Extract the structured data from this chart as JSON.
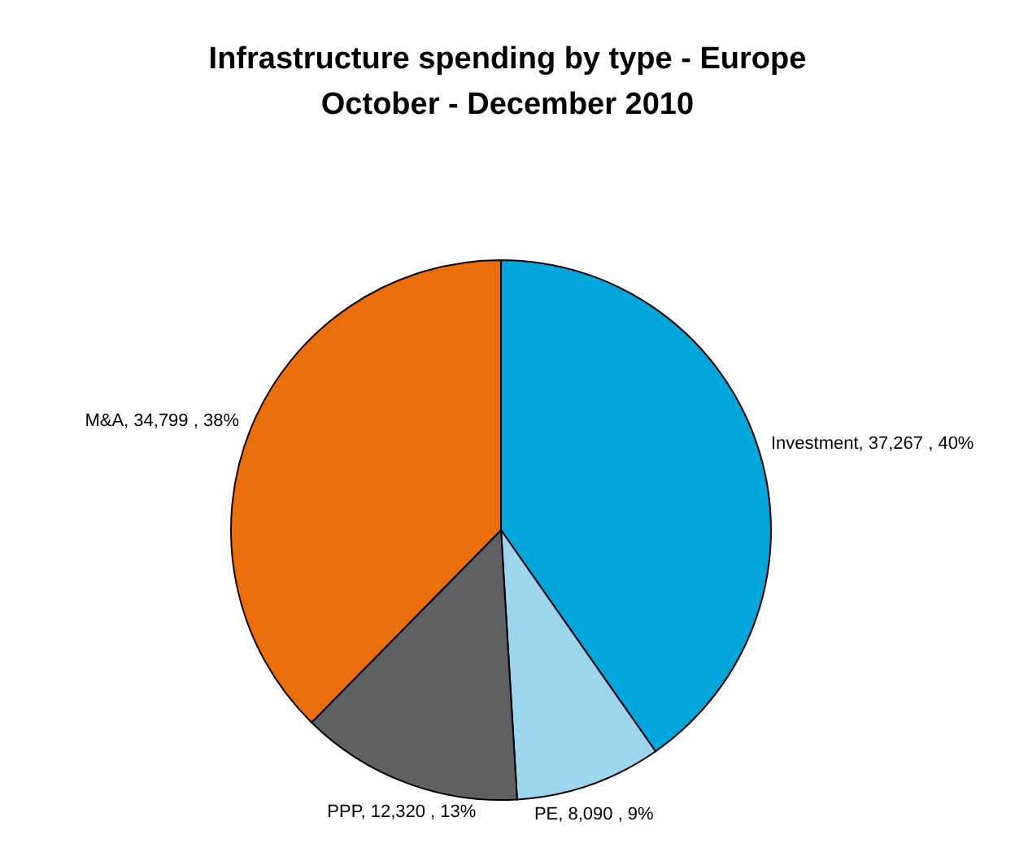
{
  "chart_data": {
    "type": "pie",
    "title": "Infrastructure spending by type - Europe",
    "subtitle": "October - December 2010",
    "categories": [
      "Investment",
      "PE",
      "PPP",
      "M&A"
    ],
    "values": [
      37267,
      8090,
      12320,
      34799
    ],
    "colors": [
      "#00a6dc",
      "#9dd5ee",
      "#5f6062",
      "#ec6e0b"
    ],
    "value_labels": [
      "37,267 , 40%",
      "8,090 , 9%",
      "12,320 , 13%",
      "34,799 , 38%"
    ]
  }
}
